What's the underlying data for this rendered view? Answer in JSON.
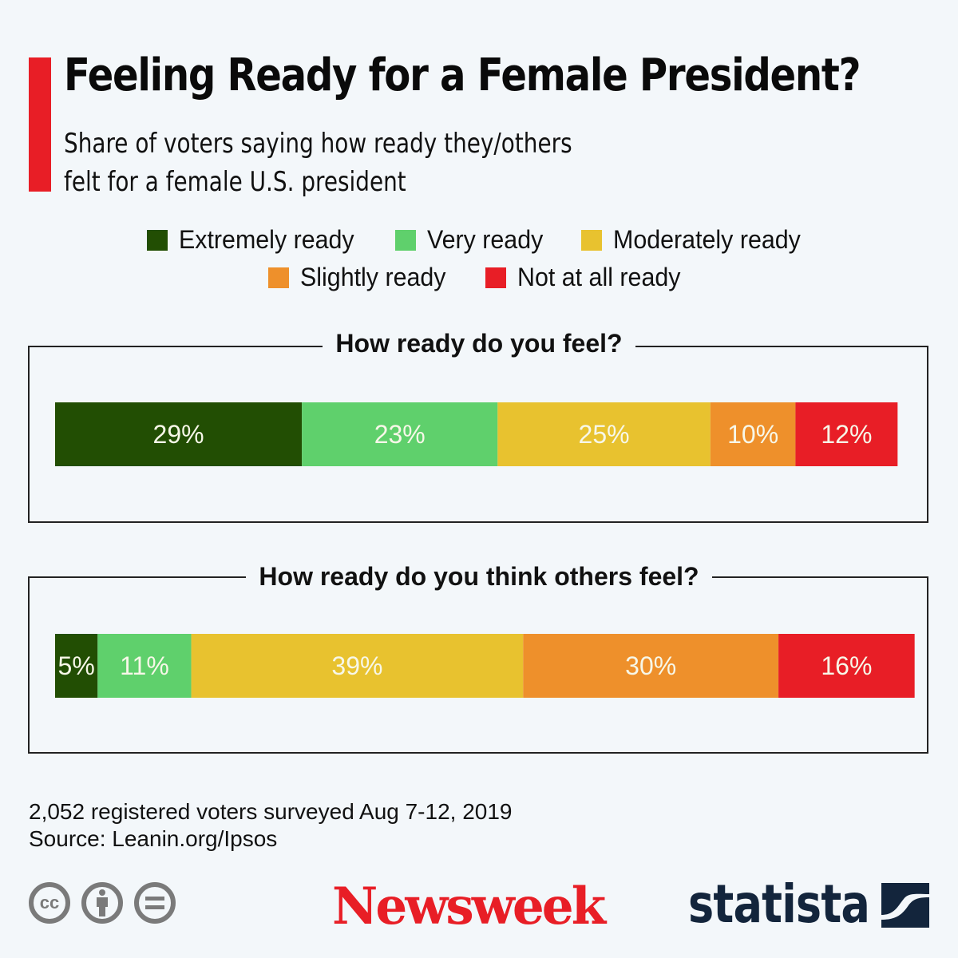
{
  "header": {
    "title": "Feeling Ready for a Female President?",
    "subtitle_line1": "Share of voters saying how ready they/others",
    "subtitle_line2": "felt for a female U.S. president",
    "accent_color": "#e81e26"
  },
  "legend": [
    {
      "label": "Extremely ready",
      "color": "#224e03"
    },
    {
      "label": "Very ready",
      "color": "#5fd06c"
    },
    {
      "label": "Moderately ready",
      "color": "#e8c22f"
    },
    {
      "label": "Slightly ready",
      "color": "#ee902b"
    },
    {
      "label": "Not at all ready",
      "color": "#e81e26"
    }
  ],
  "chart_data": {
    "type": "bar",
    "stacked": true,
    "orientation": "horizontal",
    "title": "Feeling Ready for a Female President?",
    "categories": [
      "How ready do you feel?",
      "How ready do you think others feel?"
    ],
    "series": [
      {
        "name": "Extremely ready",
        "values": [
          29,
          5
        ],
        "labels": [
          "29%",
          "5%"
        ]
      },
      {
        "name": "Very ready",
        "values": [
          23,
          11
        ],
        "labels": [
          "23%",
          "11%"
        ]
      },
      {
        "name": "Moderately ready",
        "values": [
          25,
          39
        ],
        "labels": [
          "25%",
          "39%"
        ]
      },
      {
        "name": "Slightly ready",
        "values": [
          10,
          30
        ],
        "labels": [
          "10%",
          "30%"
        ]
      },
      {
        "name": "Not at all ready",
        "values": [
          12,
          16
        ],
        "labels": [
          "12%",
          "16%"
        ]
      }
    ],
    "unit": "%",
    "xlabel": "",
    "ylabel": "",
    "grid": false,
    "legend_position": "top-center"
  },
  "panels": [
    {
      "title": "How ready do you feel?"
    },
    {
      "title": "How ready do you think others feel?"
    }
  ],
  "footer": {
    "note": "2,052 registered voters surveyed Aug 7-12, 2019",
    "source": "Source: Leanin.org/Ipsos",
    "license_icons": [
      "cc-icon",
      "attribution-icon",
      "no-derivatives-icon"
    ],
    "cc_text": "cc",
    "brand1": "Newsweek",
    "brand2": "statista"
  }
}
